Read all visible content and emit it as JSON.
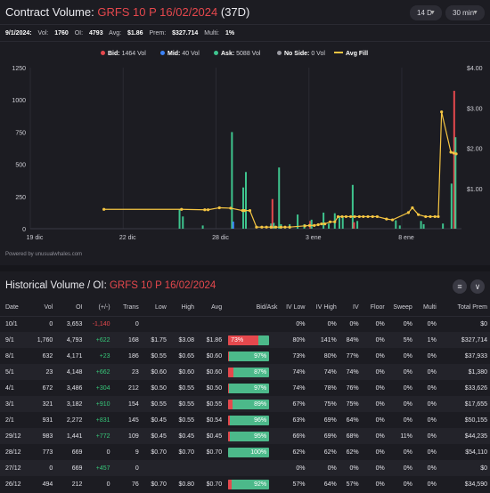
{
  "header": {
    "title_prefix": "Contract Volume: ",
    "contract": "GRFS 10 P 16/02/2024",
    "dte": " (37D)",
    "range_select": "14 D",
    "interval_select": "30 min"
  },
  "stats": {
    "date": "9/1/2024:",
    "vol_label": "Vol:",
    "vol": "1760",
    "oi_label": "OI:",
    "oi": "4793",
    "avg_label": "Avg:",
    "avg": "$1.86",
    "prem_label": "Prem:",
    "prem": "$327.714",
    "multi_label": "Multi:",
    "multi": "1%"
  },
  "legend": {
    "bid": {
      "label": "Bid:",
      "value": "1464 Vol",
      "color": "#e5484d"
    },
    "mid": {
      "label": "Mid:",
      "value": "40 Vol",
      "color": "#3b82f6"
    },
    "ask": {
      "label": "Ask:",
      "value": "5088 Vol",
      "color": "#3ec48e"
    },
    "noside": {
      "label": "No Side:",
      "value": "0 Vol",
      "color": "#9a9aa2"
    },
    "avgfill": {
      "label": "Avg Fill",
      "color": "#f5c542"
    }
  },
  "chart_data": {
    "type": "bar",
    "ylim": [
      0,
      1250
    ],
    "y2lim": [
      0,
      4
    ],
    "yticks": [
      "0",
      "250",
      "500",
      "750",
      "1000",
      "1250"
    ],
    "y2ticks": [
      "$1.00",
      "$2.00",
      "$3.00",
      "$4.00"
    ],
    "xticks": [
      {
        "label": "19 dic",
        "x": 0
      },
      {
        "label": "22 dic",
        "x": 14
      },
      {
        "label": "28 dic",
        "x": 28
      },
      {
        "label": "3 ene",
        "x": 42
      },
      {
        "label": "8 ene",
        "x": 56
      }
    ],
    "xlim": [
      0,
      65
    ],
    "bars": [
      {
        "x": 22.5,
        "ask": 150
      },
      {
        "x": 23.0,
        "ask": 95
      },
      {
        "x": 26.0,
        "ask": 25
      },
      {
        "x": 30.4,
        "ask": 750
      },
      {
        "x": 30.6,
        "mid": 55
      },
      {
        "x": 32.1,
        "ask": 320
      },
      {
        "x": 32.5,
        "ask": 440
      },
      {
        "x": 36.3,
        "ask": 40
      },
      {
        "x": 36.5,
        "bid": 230
      },
      {
        "x": 36.7,
        "ask": 45
      },
      {
        "x": 37.5,
        "ask": 475
      },
      {
        "x": 37.8,
        "ask": 35
      },
      {
        "x": 39.1,
        "ask": 35
      },
      {
        "x": 40.3,
        "ask": 110
      },
      {
        "x": 41.3,
        "ask": 35
      },
      {
        "x": 42.2,
        "bid": 60
      },
      {
        "x": 42.4,
        "ask": 70
      },
      {
        "x": 44.2,
        "ask": 125
      },
      {
        "x": 45.0,
        "ask": 40
      },
      {
        "x": 45.9,
        "ask": 120
      },
      {
        "x": 46.6,
        "ask": 90
      },
      {
        "x": 47.1,
        "ask": 95
      },
      {
        "x": 48.6,
        "ask": 340
      },
      {
        "x": 48.8,
        "bid": 50
      },
      {
        "x": 49.3,
        "ask": 60
      },
      {
        "x": 55.1,
        "ask": 65
      },
      {
        "x": 55.7,
        "ask": 25
      },
      {
        "x": 58.9,
        "ask": 60
      },
      {
        "x": 59.3,
        "ask": 35
      },
      {
        "x": 62.2,
        "ask": 40
      },
      {
        "x": 63.5,
        "ask": 350
      },
      {
        "x": 63.9,
        "bid": 1070
      },
      {
        "x": 64.1,
        "ask": 710
      }
    ],
    "avg_fill": [
      {
        "x": 11.1,
        "y": 0.48
      },
      {
        "x": 22.8,
        "y": 0.48
      },
      {
        "x": 26.3,
        "y": 0.47
      },
      {
        "x": 26.8,
        "y": 0.47
      },
      {
        "x": 28.5,
        "y": 0.52
      },
      {
        "x": 30.2,
        "y": 0.51
      },
      {
        "x": 32.0,
        "y": 0.45
      },
      {
        "x": 32.3,
        "y": 0.45
      },
      {
        "x": 33.1,
        "y": 0.45
      },
      {
        "x": 34.1,
        "y": 0.04
      },
      {
        "x": 34.9,
        "y": 0.04
      },
      {
        "x": 35.6,
        "y": 0.04
      },
      {
        "x": 36.3,
        "y": 0.04
      },
      {
        "x": 37.0,
        "y": 0.04
      },
      {
        "x": 37.8,
        "y": 0.04
      },
      {
        "x": 38.4,
        "y": 0.04
      },
      {
        "x": 39.1,
        "y": 0.04
      },
      {
        "x": 41.4,
        "y": 0.07
      },
      {
        "x": 42.1,
        "y": 0.08
      },
      {
        "x": 42.8,
        "y": 0.08
      },
      {
        "x": 43.4,
        "y": 0.1
      },
      {
        "x": 43.9,
        "y": 0.12
      },
      {
        "x": 44.4,
        "y": 0.12
      },
      {
        "x": 45.2,
        "y": 0.17
      },
      {
        "x": 45.9,
        "y": 0.17
      },
      {
        "x": 46.4,
        "y": 0.3
      },
      {
        "x": 47.0,
        "y": 0.3
      },
      {
        "x": 47.6,
        "y": 0.3
      },
      {
        "x": 48.3,
        "y": 0.3
      },
      {
        "x": 48.9,
        "y": 0.3
      },
      {
        "x": 49.6,
        "y": 0.3
      },
      {
        "x": 50.2,
        "y": 0.3
      },
      {
        "x": 50.9,
        "y": 0.3
      },
      {
        "x": 51.6,
        "y": 0.3
      },
      {
        "x": 52.3,
        "y": 0.3
      },
      {
        "x": 53.7,
        "y": 0.24
      },
      {
        "x": 54.6,
        "y": 0.22
      },
      {
        "x": 57.0,
        "y": 0.4
      },
      {
        "x": 57.6,
        "y": 0.52
      },
      {
        "x": 58.5,
        "y": 0.35
      },
      {
        "x": 59.6,
        "y": 0.3
      },
      {
        "x": 60.3,
        "y": 0.3
      },
      {
        "x": 61.0,
        "y": 0.3
      },
      {
        "x": 61.5,
        "y": 0.3
      },
      {
        "x": 62.0,
        "y": 2.9
      },
      {
        "x": 63.4,
        "y": 1.9
      },
      {
        "x": 63.8,
        "y": 1.88
      },
      {
        "x": 64.2,
        "y": 1.86
      }
    ]
  },
  "powered_by": "Powered by unusualwhales.com",
  "history": {
    "title_prefix": "Historical Volume / OI: ",
    "contract": "GRFS 10 P 16/02/2024",
    "columns": [
      "Date",
      "Vol",
      "OI",
      "(+/-)",
      "Trans",
      "Low",
      "High",
      "Avg",
      "Bid/Ask",
      "IV Low",
      "IV High",
      "IV",
      "Floor",
      "Sweep",
      "Multi",
      "Total Prem"
    ],
    "rows": [
      {
        "date": "10/1",
        "vol": "0",
        "oi": "3,653",
        "chg": "-1,140",
        "trans": "0",
        "low": "",
        "high": "",
        "avg": "",
        "bid_pct": 0,
        "ask_pct": 0,
        "ba_label": "",
        "iv_low": "0%",
        "iv_high": "0%",
        "iv": "0%",
        "floor": "0%",
        "sweep": "0%",
        "multi": "0%",
        "prem": "$0"
      },
      {
        "date": "9/1",
        "vol": "1,760",
        "oi": "4,793",
        "chg": "+622",
        "trans": "168",
        "low": "$1.75",
        "high": "$3.08",
        "avg": "$1.86",
        "bid_pct": 73,
        "ask_pct": 27,
        "ba_label": "73%",
        "iv_low": "80%",
        "iv_high": "141%",
        "iv": "84%",
        "floor": "0%",
        "sweep": "5%",
        "multi": "1%",
        "prem": "$327,714"
      },
      {
        "date": "8/1",
        "vol": "632",
        "oi": "4,171",
        "chg": "+23",
        "trans": "186",
        "low": "$0.55",
        "high": "$0.65",
        "avg": "$0.60",
        "bid_pct": 3,
        "ask_pct": 97,
        "ba_label": "97%",
        "iv_low": "73%",
        "iv_high": "80%",
        "iv": "77%",
        "floor": "0%",
        "sweep": "0%",
        "multi": "0%",
        "prem": "$37,933"
      },
      {
        "date": "5/1",
        "vol": "23",
        "oi": "4,148",
        "chg": "+662",
        "trans": "23",
        "low": "$0.60",
        "high": "$0.60",
        "avg": "$0.60",
        "bid_pct": 13,
        "ask_pct": 87,
        "ba_label": "87%",
        "iv_low": "74%",
        "iv_high": "74%",
        "iv": "74%",
        "floor": "0%",
        "sweep": "0%",
        "multi": "0%",
        "prem": "$1,380"
      },
      {
        "date": "4/1",
        "vol": "672",
        "oi": "3,486",
        "chg": "+304",
        "trans": "212",
        "low": "$0.50",
        "high": "$0.55",
        "avg": "$0.50",
        "bid_pct": 3,
        "ask_pct": 97,
        "ba_label": "97%",
        "iv_low": "74%",
        "iv_high": "78%",
        "iv": "76%",
        "floor": "0%",
        "sweep": "0%",
        "multi": "0%",
        "prem": "$33,626"
      },
      {
        "date": "3/1",
        "vol": "321",
        "oi": "3,182",
        "chg": "+910",
        "trans": "154",
        "low": "$0.55",
        "high": "$0.55",
        "avg": "$0.55",
        "bid_pct": 11,
        "ask_pct": 89,
        "ba_label": "89%",
        "iv_low": "67%",
        "iv_high": "75%",
        "iv": "75%",
        "floor": "0%",
        "sweep": "0%",
        "multi": "0%",
        "prem": "$17,655"
      },
      {
        "date": "2/1",
        "vol": "931",
        "oi": "2,272",
        "chg": "+831",
        "trans": "145",
        "low": "$0.45",
        "high": "$0.55",
        "avg": "$0.54",
        "bid_pct": 4,
        "ask_pct": 96,
        "ba_label": "96%",
        "iv_low": "63%",
        "iv_high": "69%",
        "iv": "64%",
        "floor": "0%",
        "sweep": "0%",
        "multi": "0%",
        "prem": "$50,155"
      },
      {
        "date": "29/12",
        "vol": "983",
        "oi": "1,441",
        "chg": "+772",
        "trans": "109",
        "low": "$0.45",
        "high": "$0.45",
        "avg": "$0.45",
        "bid_pct": 5,
        "ask_pct": 95,
        "ba_label": "95%",
        "iv_low": "66%",
        "iv_high": "69%",
        "iv": "68%",
        "floor": "0%",
        "sweep": "11%",
        "multi": "0%",
        "prem": "$44,235"
      },
      {
        "date": "28/12",
        "vol": "773",
        "oi": "669",
        "chg": "0",
        "trans": "9",
        "low": "$0.70",
        "high": "$0.70",
        "avg": "$0.70",
        "bid_pct": 0,
        "ask_pct": 100,
        "ba_label": "100%",
        "iv_low": "62%",
        "iv_high": "62%",
        "iv": "62%",
        "floor": "0%",
        "sweep": "0%",
        "multi": "0%",
        "prem": "$54,110"
      },
      {
        "date": "27/12",
        "vol": "0",
        "oi": "669",
        "chg": "+457",
        "trans": "0",
        "low": "",
        "high": "",
        "avg": "",
        "bid_pct": 0,
        "ask_pct": 0,
        "ba_label": "",
        "iv_low": "0%",
        "iv_high": "0%",
        "iv": "0%",
        "floor": "0%",
        "sweep": "0%",
        "multi": "0%",
        "prem": "$0"
      },
      {
        "date": "26/12",
        "vol": "494",
        "oi": "212",
        "chg": "0",
        "trans": "76",
        "low": "$0.70",
        "high": "$0.80",
        "avg": "$0.70",
        "bid_pct": 8,
        "ask_pct": 92,
        "ba_label": "92%",
        "iv_low": "57%",
        "iv_high": "64%",
        "iv": "57%",
        "floor": "0%",
        "sweep": "0%",
        "multi": "0%",
        "prem": "$34,590"
      }
    ]
  },
  "icons": {
    "filter": "filter-icon",
    "collapse": "collapse-icon"
  }
}
